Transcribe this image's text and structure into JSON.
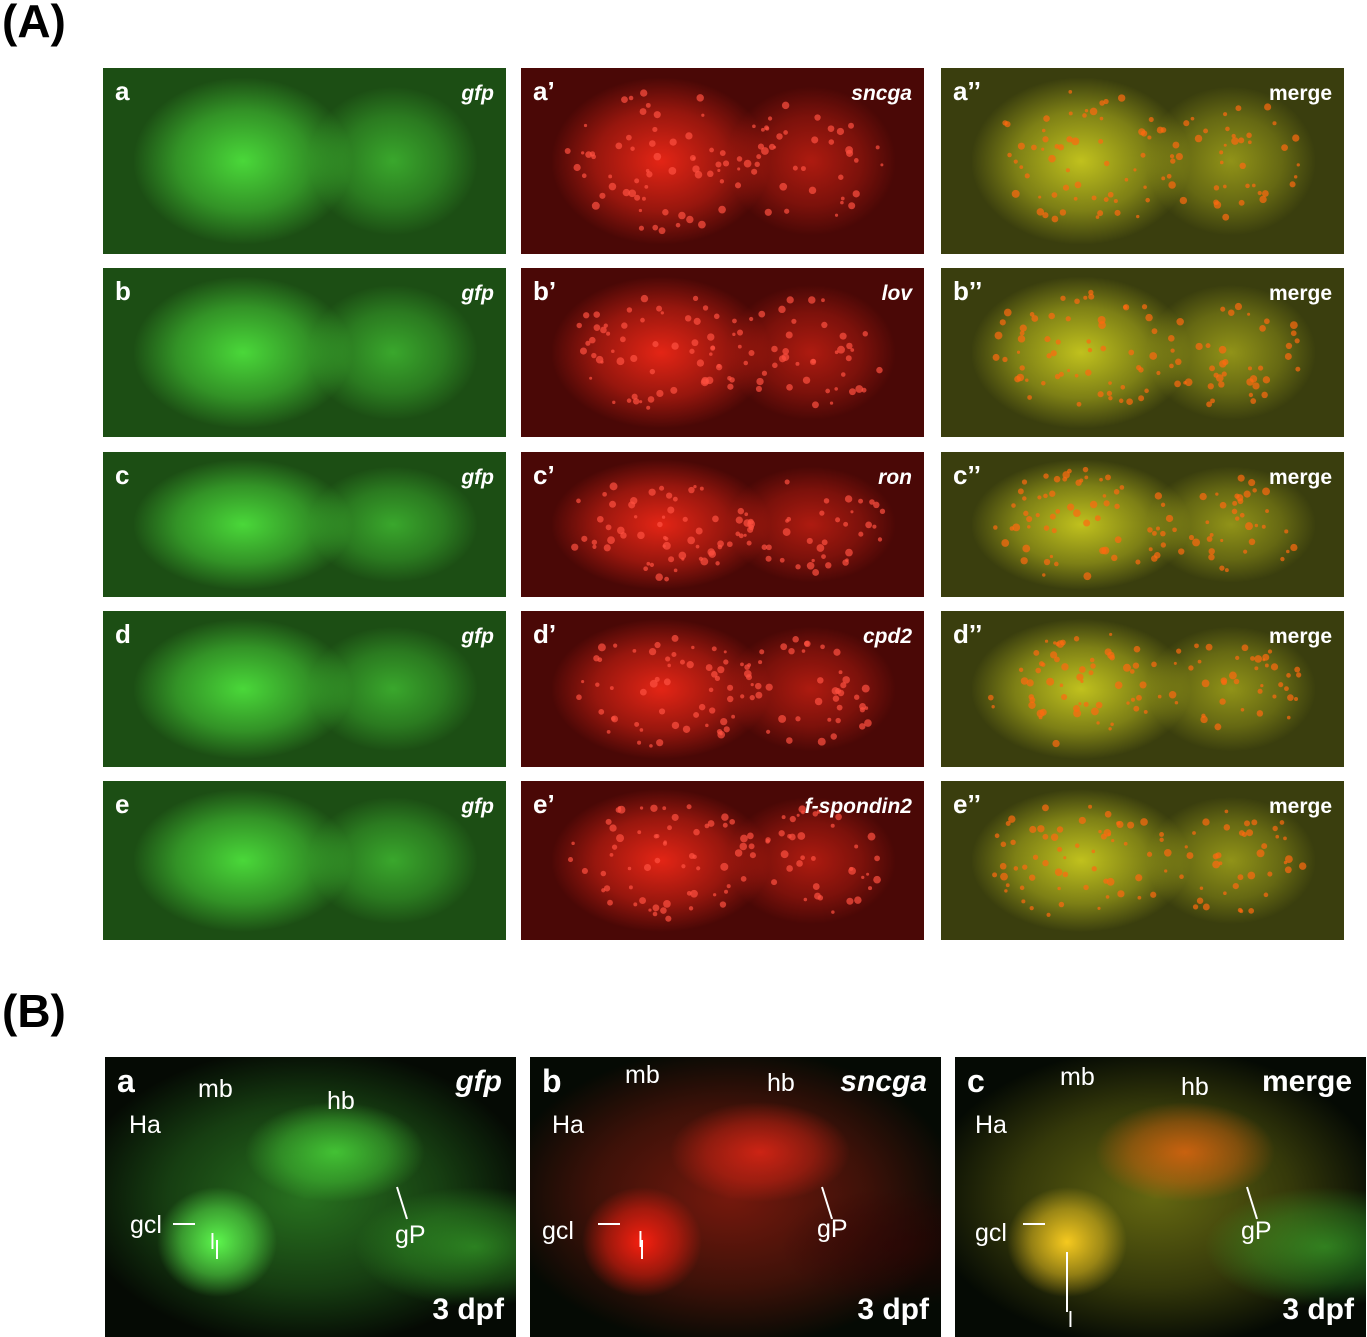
{
  "section_a": {
    "label": "(A)",
    "rows": [
      [
        {
          "letter": "a",
          "marker": "gfp"
        },
        {
          "letter": "a’",
          "marker": "sncga"
        },
        {
          "letter": "a’’",
          "marker": "merge"
        }
      ],
      [
        {
          "letter": "b",
          "marker": "gfp"
        },
        {
          "letter": "b’",
          "marker": "lov"
        },
        {
          "letter": "b’’",
          "marker": "merge"
        }
      ],
      [
        {
          "letter": "c",
          "marker": "gfp"
        },
        {
          "letter": "c’",
          "marker": "ron"
        },
        {
          "letter": "c’’",
          "marker": "merge"
        }
      ],
      [
        {
          "letter": "d",
          "marker": "gfp"
        },
        {
          "letter": "d’",
          "marker": "cpd2"
        },
        {
          "letter": "d’’",
          "marker": "merge"
        }
      ],
      [
        {
          "letter": "e",
          "marker": "gfp"
        },
        {
          "letter": "e’",
          "marker": "f-spondin2"
        },
        {
          "letter": "e’’",
          "marker": "merge"
        }
      ]
    ]
  },
  "section_b": {
    "label": "(B)",
    "panels": [
      {
        "letter": "a",
        "marker": "gfp",
        "stage": "3 dpf",
        "annotations": [
          "mb",
          "hb",
          "Ha",
          "gcl",
          "l",
          "gP"
        ]
      },
      {
        "letter": "b",
        "marker": "sncga",
        "stage": "3 dpf",
        "annotations": [
          "mb",
          "hb",
          "Ha",
          "gcl",
          "l",
          "gP"
        ]
      },
      {
        "letter": "c",
        "marker": "merge",
        "stage": "3 dpf",
        "annotations": [
          "mb",
          "hb",
          "Ha",
          "gcl",
          "l",
          "gP"
        ]
      }
    ]
  }
}
